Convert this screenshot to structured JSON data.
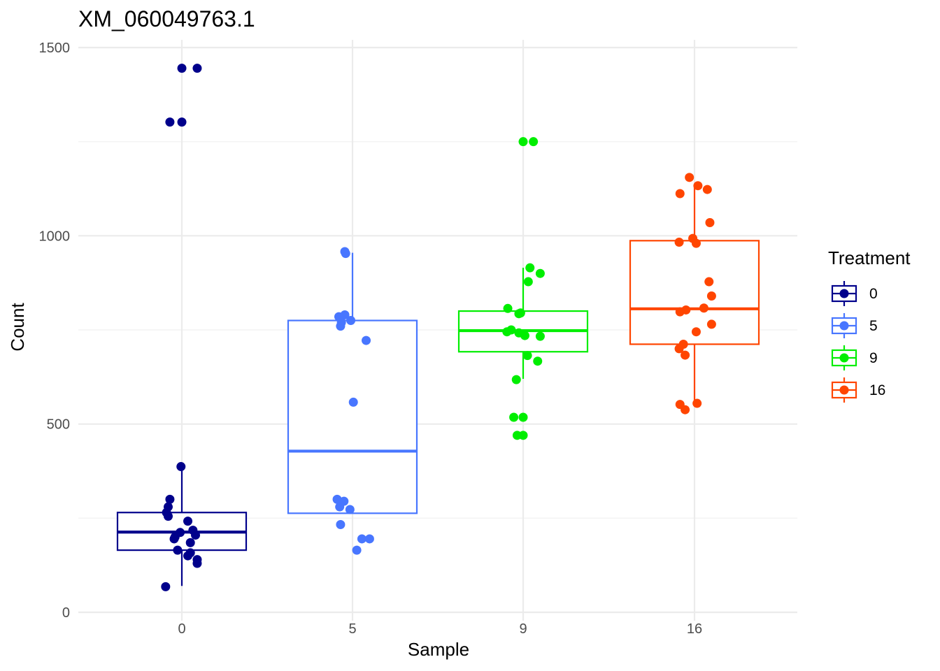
{
  "chart_data": {
    "type": "box",
    "title": "XM_060049763.1",
    "xlabel": "Sample",
    "ylabel": "Count",
    "ylim": [
      0,
      1500
    ],
    "yticks": [
      0,
      500,
      1000,
      1500
    ],
    "categories": [
      "0",
      "5",
      "9",
      "16"
    ],
    "legend": {
      "title": "Treatment",
      "position": "right",
      "labels": [
        "0",
        "5",
        "9",
        "16"
      ]
    },
    "colors": [
      "#00008B",
      "#4876FF",
      "#00EE00",
      "#FF4500"
    ],
    "grid": true,
    "series": [
      {
        "category": "0",
        "box": {
          "q1": 165,
          "median": 213,
          "q3": 265,
          "whisker_low": 70,
          "whisker_high": 385
        },
        "points": [
          {
            "x": 0.0,
            "y": 1445
          },
          {
            "x": 0.09,
            "y": 1445
          },
          {
            "x": -0.07,
            "y": 1302
          },
          {
            "x": 0.0,
            "y": 1302
          },
          {
            "x": -0.005,
            "y": 387
          },
          {
            "x": -0.07,
            "y": 300
          },
          {
            "x": -0.08,
            "y": 280
          },
          {
            "x": -0.09,
            "y": 265
          },
          {
            "x": -0.08,
            "y": 255
          },
          {
            "x": 0.035,
            "y": 242
          },
          {
            "x": 0.065,
            "y": 218
          },
          {
            "x": -0.01,
            "y": 212
          },
          {
            "x": 0.08,
            "y": 205
          },
          {
            "x": -0.04,
            "y": 200
          },
          {
            "x": -0.045,
            "y": 195
          },
          {
            "x": 0.05,
            "y": 185
          },
          {
            "x": -0.025,
            "y": 165
          },
          {
            "x": 0.05,
            "y": 158
          },
          {
            "x": 0.035,
            "y": 150
          },
          {
            "x": 0.09,
            "y": 140
          },
          {
            "x": 0.09,
            "y": 130
          },
          {
            "x": -0.095,
            "y": 68
          }
        ]
      },
      {
        "category": "5",
        "box": {
          "q1": 263,
          "median": 428,
          "q3": 775,
          "whisker_low": 263,
          "whisker_high": 955
        },
        "points": [
          {
            "x": -0.045,
            "y": 958
          },
          {
            "x": -0.04,
            "y": 953
          },
          {
            "x": -0.045,
            "y": 790
          },
          {
            "x": -0.08,
            "y": 785
          },
          {
            "x": -0.065,
            "y": 770
          },
          {
            "x": -0.01,
            "y": 775
          },
          {
            "x": -0.07,
            "y": 760
          },
          {
            "x": 0.08,
            "y": 722
          },
          {
            "x": 0.005,
            "y": 558
          },
          {
            "x": -0.09,
            "y": 300
          },
          {
            "x": -0.05,
            "y": 295
          },
          {
            "x": -0.075,
            "y": 280
          },
          {
            "x": -0.015,
            "y": 273
          },
          {
            "x": -0.07,
            "y": 233
          },
          {
            "x": 0.055,
            "y": 195
          },
          {
            "x": 0.1,
            "y": 195
          },
          {
            "x": 0.025,
            "y": 165
          }
        ]
      },
      {
        "category": "9",
        "box": {
          "q1": 692,
          "median": 748,
          "q3": 800,
          "whisker_low": 620,
          "whisker_high": 915
        },
        "points": [
          {
            "x": 0.0,
            "y": 1250
          },
          {
            "x": 0.06,
            "y": 1250
          },
          {
            "x": 0.04,
            "y": 915
          },
          {
            "x": 0.1,
            "y": 900
          },
          {
            "x": 0.03,
            "y": 878
          },
          {
            "x": -0.09,
            "y": 807
          },
          {
            "x": -0.015,
            "y": 795
          },
          {
            "x": -0.025,
            "y": 793
          },
          {
            "x": -0.07,
            "y": 750
          },
          {
            "x": -0.095,
            "y": 745
          },
          {
            "x": -0.025,
            "y": 742
          },
          {
            "x": 0.01,
            "y": 735
          },
          {
            "x": 0.1,
            "y": 733
          },
          {
            "x": 0.025,
            "y": 682
          },
          {
            "x": 0.085,
            "y": 667
          },
          {
            "x": -0.04,
            "y": 618
          },
          {
            "x": -0.055,
            "y": 518
          },
          {
            "x": 0.0,
            "y": 518
          },
          {
            "x": -0.035,
            "y": 470
          },
          {
            "x": 0.0,
            "y": 470
          }
        ]
      },
      {
        "category": "16",
        "box": {
          "q1": 712,
          "median": 806,
          "q3": 987,
          "whisker_low": 555,
          "whisker_high": 1130
        },
        "points": [
          {
            "x": -0.03,
            "y": 1155
          },
          {
            "x": 0.02,
            "y": 1133
          },
          {
            "x": 0.075,
            "y": 1123
          },
          {
            "x": -0.085,
            "y": 1112
          },
          {
            "x": 0.09,
            "y": 1035
          },
          {
            "x": -0.01,
            "y": 993
          },
          {
            "x": -0.09,
            "y": 983
          },
          {
            "x": 0.01,
            "y": 980
          },
          {
            "x": 0.085,
            "y": 878
          },
          {
            "x": 0.1,
            "y": 840
          },
          {
            "x": 0.055,
            "y": 808
          },
          {
            "x": -0.05,
            "y": 803
          },
          {
            "x": -0.085,
            "y": 798
          },
          {
            "x": 0.1,
            "y": 765
          },
          {
            "x": 0.01,
            "y": 745
          },
          {
            "x": -0.065,
            "y": 712
          },
          {
            "x": -0.09,
            "y": 700
          },
          {
            "x": -0.055,
            "y": 683
          },
          {
            "x": 0.015,
            "y": 555
          },
          {
            "x": -0.085,
            "y": 552
          },
          {
            "x": -0.055,
            "y": 538
          }
        ]
      }
    ]
  }
}
